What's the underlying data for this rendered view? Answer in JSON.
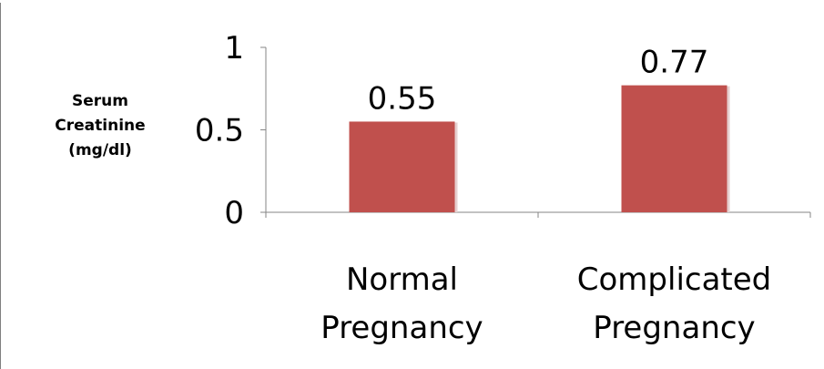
{
  "chart_data": {
    "type": "bar",
    "categories": [
      [
        "Normal",
        "Pregnancy"
      ],
      [
        "Complicated",
        "Pregnancy"
      ]
    ],
    "values": [
      0.55,
      0.77
    ],
    "data_labels": [
      "0.55",
      "0.77"
    ],
    "ylabel_lines": [
      "Serum",
      "Creatinine",
      "(mg/dl)"
    ],
    "yticks": [
      {
        "value": 0,
        "label": "0"
      },
      {
        "value": 0.5,
        "label": "0.5"
      },
      {
        "value": 1,
        "label": "1"
      }
    ],
    "ylim": [
      0,
      1
    ],
    "bar_color": "#c0504d",
    "grid": false,
    "legend": false
  }
}
